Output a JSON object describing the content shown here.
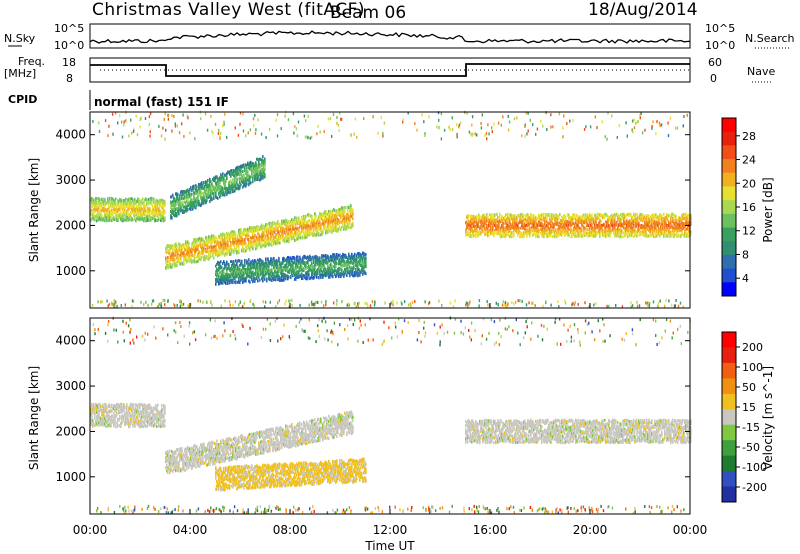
{
  "header": {
    "station": "Christmas Valley West (fitACF)",
    "beam": "Beam 06",
    "date": "18/Aug/2014"
  },
  "strip_noise": {
    "left_label": "N.Sky",
    "right_label": "N.Search",
    "left_ticks": [
      "10^5",
      "10^0"
    ],
    "right_ticks": [
      "10^5",
      "10^0"
    ]
  },
  "strip_freq": {
    "left_label_line1": "Freq.",
    "left_label_line2": "[MHz]",
    "left_ticks": [
      "18",
      "8"
    ],
    "right_label": "Nave",
    "right_ticks": [
      "60",
      "0"
    ]
  },
  "cpid": {
    "label": "CPID",
    "mode_text": "normal (fast) 151 IF"
  },
  "x_axis": {
    "ticks": [
      "00:00",
      "04:00",
      "08:00",
      "12:00",
      "16:00",
      "20:00",
      "00:00"
    ],
    "label": "Time UT"
  },
  "power_panel": {
    "ylabel": "Slant Range [km]",
    "yticks": [
      "4000",
      "3000",
      "2000",
      "1000"
    ],
    "colorbar_label": "Power [dB]",
    "colorbar_ticks": [
      "28",
      "24",
      "20",
      "16",
      "12",
      "8",
      "4"
    ],
    "colors": [
      "#0000ff",
      "#1f4fd0",
      "#2f6fb0",
      "#2f8f70",
      "#3aa060",
      "#6cc060",
      "#a8d850",
      "#e8e030",
      "#f0b020",
      "#f08020",
      "#f05018",
      "#e82010",
      "#ff0000"
    ]
  },
  "velocity_panel": {
    "ylabel": "Slant Range [km]",
    "yticks": [
      "4000",
      "3000",
      "2000",
      "1000"
    ],
    "colorbar_label": "Velocity [m s^-1]",
    "colorbar_ticks": [
      "200",
      "100",
      "50",
      "15",
      "-15",
      "-50",
      "-100",
      "-200"
    ],
    "colors": [
      "#2030a0",
      "#3050c0",
      "#207a30",
      "#40a040",
      "#80c840",
      "#c8c8c0",
      "#f0c020",
      "#f09010",
      "#f06010",
      "#e82010",
      "#ff0000"
    ]
  },
  "chart_data": [
    {
      "type": "heatmap",
      "title": "Power",
      "xlabel": "Time UT",
      "ylabel": "Slant Range [km]",
      "xlim": [
        "00:00",
        "24:00"
      ],
      "ylim": [
        180,
        4500
      ],
      "colorbar": {
        "label": "Power [dB]",
        "range": [
          0,
          30
        ],
        "ticks": [
          4,
          8,
          12,
          16,
          20,
          24,
          28
        ]
      },
      "echo_bands": [
        {
          "t_start": 0.0,
          "t_end": 3.0,
          "range_km": 2350,
          "power_db": 20
        },
        {
          "t_start": 3.0,
          "t_end": 10.5,
          "range_start_km": 1300,
          "range_end_km": 2200,
          "power_db": 22
        },
        {
          "t_start": 3.2,
          "t_end": 7.0,
          "range_start_km": 2400,
          "range_end_km": 3300,
          "power_db": 14
        },
        {
          "t_start": 5.0,
          "t_end": 11.0,
          "range_start_km": 950,
          "range_end_km": 1150,
          "power_db": 12
        },
        {
          "t_start": 15.0,
          "t_end": 24.0,
          "range_km": 2000,
          "power_db": 24
        }
      ]
    },
    {
      "type": "heatmap",
      "title": "Velocity",
      "xlabel": "Time UT",
      "ylabel": "Slant Range [km]",
      "xlim": [
        "00:00",
        "24:00"
      ],
      "ylim": [
        180,
        4500
      ],
      "colorbar": {
        "label": "Velocity [m s^-1]",
        "range": [
          -250,
          250
        ],
        "ticks": [
          200,
          100,
          50,
          15,
          -15,
          -50,
          -100,
          -200
        ]
      },
      "echo_bands": [
        {
          "t_start": 0.0,
          "t_end": 3.0,
          "range_km": 2350,
          "velocity_ms": 0
        },
        {
          "t_start": 3.0,
          "t_end": 10.5,
          "range_start_km": 1300,
          "range_end_km": 2200,
          "velocity_ms": 0
        },
        {
          "t_start": 5.0,
          "t_end": 11.0,
          "range_start_km": 950,
          "range_end_km": 1150,
          "velocity_ms": -40
        },
        {
          "t_start": 15.0,
          "t_end": 24.0,
          "range_km": 2000,
          "velocity_ms": 0
        }
      ]
    }
  ]
}
